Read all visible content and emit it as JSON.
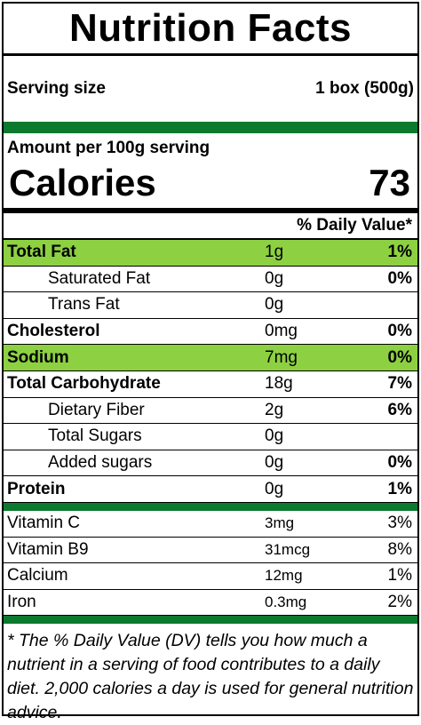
{
  "title": "Nutrition Facts",
  "serving": {
    "label": "Serving size",
    "value": "1 box (500g)"
  },
  "amount_per": "Amount per 100g serving",
  "calories": {
    "label": "Calories",
    "value": "73"
  },
  "dv_header": "% Daily Value*",
  "nutrients": [
    {
      "name": "Total Fat",
      "amount": "1g",
      "dv": "1%"
    },
    {
      "name": "Saturated Fat",
      "amount": "0g",
      "dv": "0%"
    },
    {
      "name": "Trans Fat",
      "amount": "0g",
      "dv": ""
    },
    {
      "name": "Cholesterol",
      "amount": "0mg",
      "dv": "0%"
    },
    {
      "name": "Sodium",
      "amount": "7mg",
      "dv": "0%"
    },
    {
      "name": "Total Carbohydrate",
      "amount": "18g",
      "dv": "7%"
    },
    {
      "name": "Dietary Fiber",
      "amount": "2g",
      "dv": "6%"
    },
    {
      "name": "Total Sugars",
      "amount": "0g",
      "dv": ""
    },
    {
      "name": "Added sugars",
      "amount": "0g",
      "dv": "0%"
    },
    {
      "name": "Protein",
      "amount": "0g",
      "dv": "1%"
    }
  ],
  "vitamins": [
    {
      "name": "Vitamin C",
      "amount": "3mg",
      "dv": "3%"
    },
    {
      "name": "Vitamin B9",
      "amount": "31mcg",
      "dv": "8%"
    },
    {
      "name": "Calcium",
      "amount": "12mg",
      "dv": "1%"
    },
    {
      "name": "Iron",
      "amount": "0.3mg",
      "dv": "2%"
    }
  ],
  "footnote": "* The % Daily Value (DV) tells you how much a nutrient in a serving of food contributes to a daily diet. 2,000 calories a day is used for general nutrition advice.",
  "colors": {
    "highlight": "#8dd142",
    "dark_green": "#0c7a2e"
  }
}
